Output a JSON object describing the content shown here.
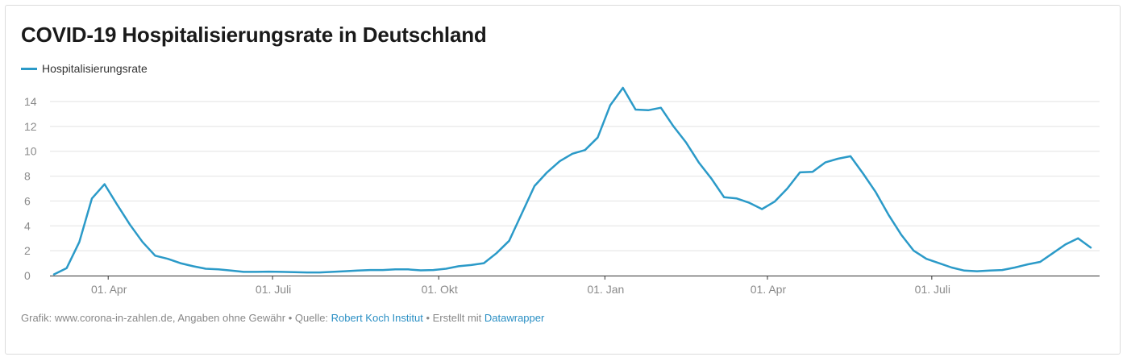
{
  "title": "COVID-19 Hospitalisierungsrate in Deutschland",
  "footer": {
    "prefix": "Grafik: www.corona-in-zahlen.de, Angaben ohne Gewähr • Quelle: ",
    "source_link": "Robert Koch Institut",
    "middle": " • Erstellt mit ",
    "tool_link": "Datawrapper"
  },
  "colors": {
    "line": "#2b9ac8",
    "grid": "#e2e2e2",
    "axis": "#333333",
    "link": "#2a8fc4"
  },
  "chart_data": {
    "type": "line",
    "title": "COVID-19 Hospitalisierungsrate in Deutschland",
    "xlabel": "",
    "ylabel": "",
    "ylim": [
      0,
      14
    ],
    "grid": true,
    "legend_position": "top-left",
    "y_ticks": [
      0,
      2,
      4,
      6,
      8,
      10,
      12,
      14
    ],
    "x_tick_labels": [
      {
        "label": "01. Apr",
        "date": "2020-04-01"
      },
      {
        "label": "01. Juli",
        "date": "2020-07-01"
      },
      {
        "label": "01. Okt",
        "date": "2020-10-01"
      },
      {
        "label": "01. Jan",
        "date": "2021-01-01"
      },
      {
        "label": "01. Apr",
        "date": "2021-04-01"
      },
      {
        "label": "01. Juli",
        "date": "2021-07-01"
      }
    ],
    "series": [
      {
        "name": "Hospitalisierungsrate",
        "points": [
          [
            "2020-03-02",
            0.1
          ],
          [
            "2020-03-09",
            0.6
          ],
          [
            "2020-03-16",
            2.7
          ],
          [
            "2020-03-23",
            6.2
          ],
          [
            "2020-03-30",
            7.35
          ],
          [
            "2020-04-06",
            5.7
          ],
          [
            "2020-04-13",
            4.1
          ],
          [
            "2020-04-20",
            2.7
          ],
          [
            "2020-04-27",
            1.6
          ],
          [
            "2020-05-04",
            1.35
          ],
          [
            "2020-05-11",
            1.0
          ],
          [
            "2020-05-18",
            0.75
          ],
          [
            "2020-05-25",
            0.55
          ],
          [
            "2020-06-01",
            0.5
          ],
          [
            "2020-06-08",
            0.4
          ],
          [
            "2020-06-15",
            0.3
          ],
          [
            "2020-06-22",
            0.3
          ],
          [
            "2020-06-29",
            0.32
          ],
          [
            "2020-07-06",
            0.3
          ],
          [
            "2020-07-13",
            0.28
          ],
          [
            "2020-07-20",
            0.25
          ],
          [
            "2020-07-27",
            0.25
          ],
          [
            "2020-08-03",
            0.3
          ],
          [
            "2020-08-10",
            0.35
          ],
          [
            "2020-08-17",
            0.4
          ],
          [
            "2020-08-24",
            0.45
          ],
          [
            "2020-08-31",
            0.45
          ],
          [
            "2020-09-07",
            0.5
          ],
          [
            "2020-09-14",
            0.5
          ],
          [
            "2020-09-21",
            0.42
          ],
          [
            "2020-09-28",
            0.45
          ],
          [
            "2020-10-05",
            0.55
          ],
          [
            "2020-10-12",
            0.75
          ],
          [
            "2020-10-19",
            0.85
          ],
          [
            "2020-10-26",
            1.0
          ],
          [
            "2020-11-02",
            1.8
          ],
          [
            "2020-11-09",
            2.8
          ],
          [
            "2020-11-16",
            5.0
          ],
          [
            "2020-11-23",
            7.2
          ],
          [
            "2020-11-30",
            8.3
          ],
          [
            "2020-12-07",
            9.2
          ],
          [
            "2020-12-14",
            9.8
          ],
          [
            "2020-12-21",
            10.1
          ],
          [
            "2020-12-28",
            11.1
          ],
          [
            "2021-01-04",
            13.7
          ],
          [
            "2021-01-11",
            15.1
          ],
          [
            "2021-01-18",
            13.35
          ],
          [
            "2021-01-25",
            13.3
          ],
          [
            "2021-02-01",
            13.5
          ],
          [
            "2021-02-08",
            12.0
          ],
          [
            "2021-02-15",
            10.7
          ],
          [
            "2021-02-22",
            9.1
          ],
          [
            "2021-03-01",
            7.8
          ],
          [
            "2021-03-08",
            6.3
          ],
          [
            "2021-03-15",
            6.2
          ],
          [
            "2021-03-22",
            5.85
          ],
          [
            "2021-03-29",
            5.35
          ],
          [
            "2021-04-05",
            5.95
          ],
          [
            "2021-04-12",
            7.0
          ],
          [
            "2021-04-19",
            8.3
          ],
          [
            "2021-04-26",
            8.35
          ],
          [
            "2021-05-03",
            9.1
          ],
          [
            "2021-05-10",
            9.4
          ],
          [
            "2021-05-17",
            9.6
          ],
          [
            "2021-05-24",
            8.2
          ],
          [
            "2021-05-31",
            6.7
          ],
          [
            "2021-06-07",
            4.9
          ],
          [
            "2021-06-14",
            3.3
          ],
          [
            "2021-06-21",
            2.0
          ],
          [
            "2021-06-28",
            1.35
          ],
          [
            "2021-07-05",
            1.0
          ],
          [
            "2021-07-12",
            0.65
          ],
          [
            "2021-07-19",
            0.4
          ],
          [
            "2021-07-26",
            0.35
          ],
          [
            "2021-08-02",
            0.4
          ],
          [
            "2021-08-09",
            0.45
          ],
          [
            "2021-08-16",
            0.65
          ],
          [
            "2021-08-23",
            0.9
          ],
          [
            "2021-08-30",
            1.1
          ],
          [
            "2021-09-06",
            1.8
          ],
          [
            "2021-09-13",
            2.5
          ],
          [
            "2021-09-20",
            3.0
          ],
          [
            "2021-09-27",
            2.25
          ]
        ]
      }
    ]
  }
}
